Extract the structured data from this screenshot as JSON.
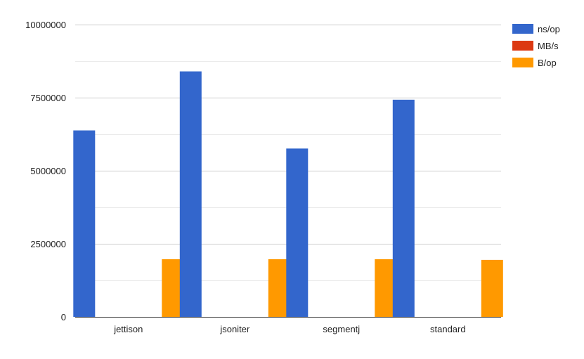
{
  "chart_data": {
    "type": "bar",
    "categories": [
      "jettison",
      "jsoniter",
      "segmentj",
      "standard"
    ],
    "series": [
      {
        "name": "ns/op",
        "color": "#3366cc",
        "values": [
          6380000,
          8400000,
          5760000,
          7430000
        ]
      },
      {
        "name": "MB/s",
        "color": "#dc3912",
        "values": [
          0,
          0,
          0,
          0
        ]
      },
      {
        "name": "B/op",
        "color": "#ff9900",
        "values": [
          1970000,
          1970000,
          1970000,
          1950000
        ]
      }
    ],
    "y_ticks": [
      "0",
      "2500000",
      "5000000",
      "7500000",
      "10000000"
    ],
    "ylim": [
      0,
      10000000
    ],
    "grid": true,
    "legend_position": "right"
  }
}
